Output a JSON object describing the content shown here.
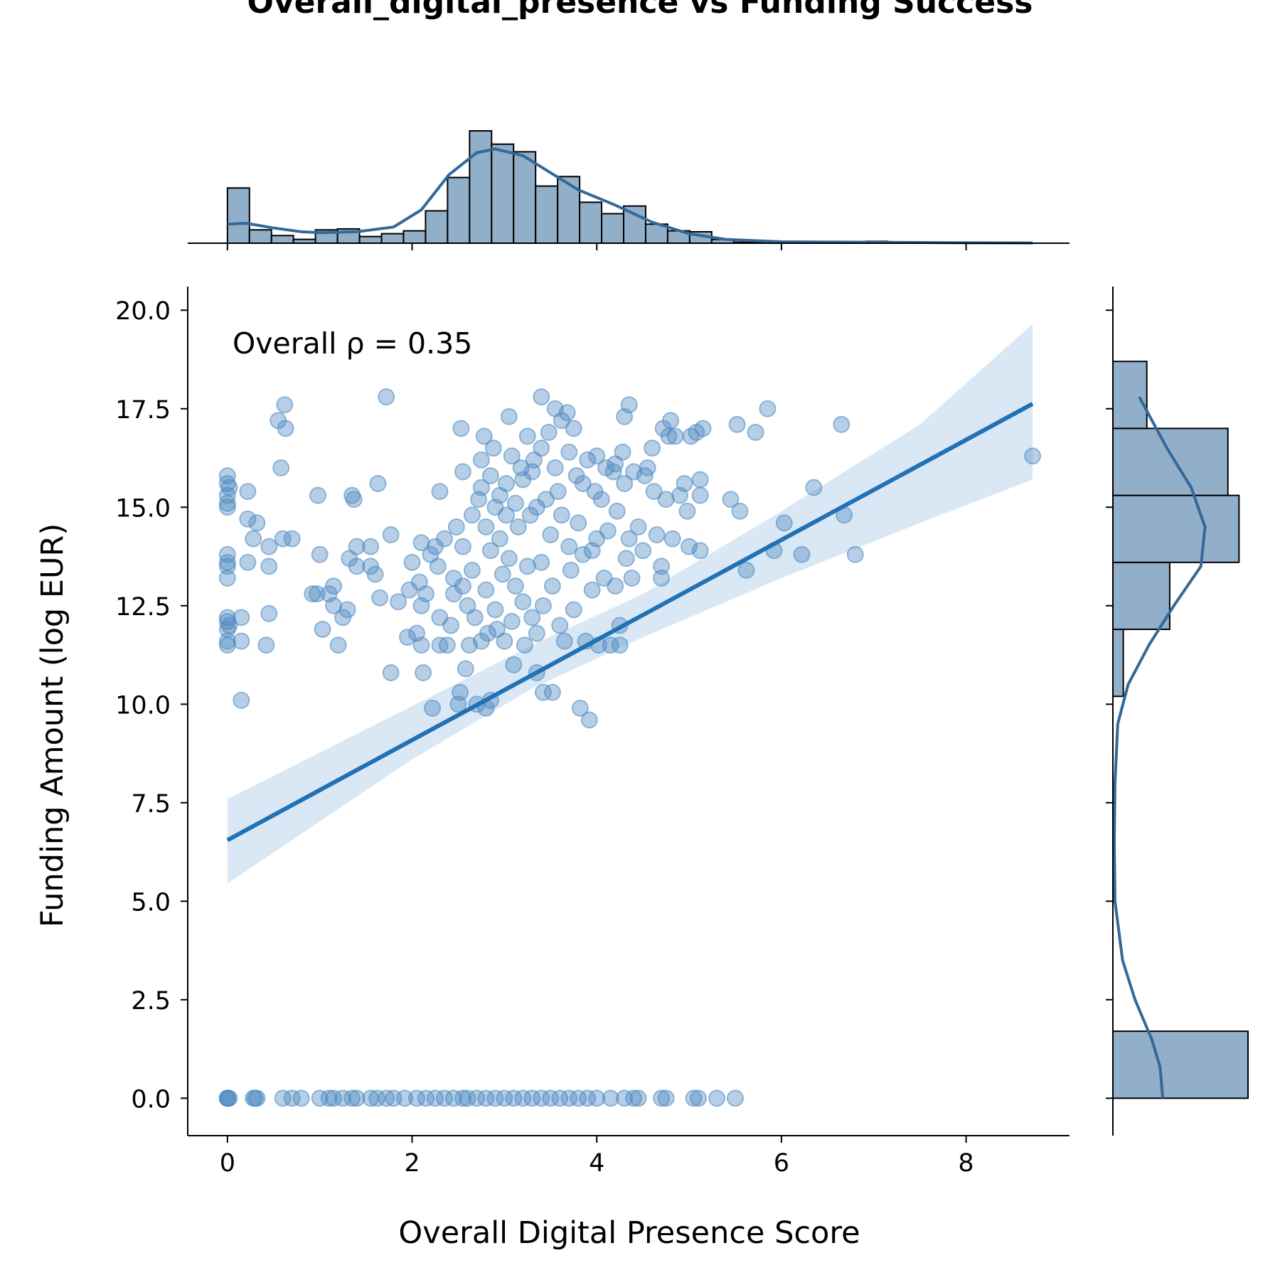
{
  "chart_data": {
    "type": "scatter",
    "title": "Overall_digital_presence vs Funding Success",
    "xlabel": "Overall Digital Presence Score",
    "ylabel": "Funding Amount (log EUR)",
    "annotation": "Overall ρ = 0.35",
    "xlim": [
      -0.43,
      9.12
    ],
    "ylim": [
      -0.95,
      20.6
    ],
    "x_ticks": [
      0,
      2,
      4,
      6,
      8
    ],
    "x_tick_labels": [
      "0",
      "2",
      "4",
      "6",
      "8"
    ],
    "y_ticks": [
      0,
      2.5,
      5,
      7.5,
      10,
      12.5,
      15,
      17.5,
      20
    ],
    "y_tick_labels": [
      "0.0",
      "2.5",
      "5.0",
      "7.5",
      "10.0",
      "12.5",
      "15.0",
      "17.5",
      "20.0"
    ],
    "grid": false,
    "colors": {
      "points": "#4a88c0",
      "regression_line": "#2171b5",
      "confidence_band": "#c6dbef",
      "histogram_fill": "#92afca",
      "kde_line": "#336897"
    },
    "regression": {
      "slope": 1.27,
      "intercept": 6.55,
      "x_range": [
        0,
        8.72
      ],
      "ci_lower": [
        [
          0,
          5.45
        ],
        [
          2,
          8.6
        ],
        [
          3.3,
          10.4
        ],
        [
          4.5,
          11.7
        ],
        [
          6,
          13.2
        ],
        [
          7.5,
          14.6
        ],
        [
          8.72,
          15.7
        ]
      ],
      "ci_upper": [
        [
          0,
          7.6
        ],
        [
          2,
          9.95
        ],
        [
          3.3,
          11.5
        ],
        [
          4.5,
          12.8
        ],
        [
          6,
          14.9
        ],
        [
          7.5,
          17.1
        ],
        [
          8.72,
          19.65
        ]
      ]
    },
    "points": [
      [
        0,
        15.8
      ],
      [
        0,
        15.6
      ],
      [
        0,
        15.3
      ],
      [
        0,
        15.0
      ],
      [
        0,
        15.1
      ],
      [
        0.02,
        15.5
      ],
      [
        0,
        13.8
      ],
      [
        0,
        13.5
      ],
      [
        0,
        13.6
      ],
      [
        0,
        13.2
      ],
      [
        0,
        12.2
      ],
      [
        0,
        12.1
      ],
      [
        0,
        11.9
      ],
      [
        0,
        11.6
      ],
      [
        0,
        11.5
      ],
      [
        0.02,
        12.0
      ],
      [
        0.15,
        12.2
      ],
      [
        0.15,
        11.6
      ],
      [
        0.15,
        10.1
      ],
      [
        0.22,
        15.4
      ],
      [
        0.22,
        14.7
      ],
      [
        0.22,
        13.6
      ],
      [
        0.28,
        14.2
      ],
      [
        0.32,
        14.6
      ],
      [
        0.42,
        11.5
      ],
      [
        0.45,
        12.3
      ],
      [
        0.45,
        13.5
      ],
      [
        0.45,
        14.0
      ],
      [
        0.55,
        17.2
      ],
      [
        0.58,
        16.0
      ],
      [
        0.6,
        14.2
      ],
      [
        0.62,
        17.6
      ],
      [
        0.63,
        17.0
      ],
      [
        0.7,
        14.2
      ],
      [
        0.92,
        12.8
      ],
      [
        0.97,
        12.8
      ],
      [
        0.98,
        15.3
      ],
      [
        1.0,
        13.8
      ],
      [
        1.03,
        11.9
      ],
      [
        1.1,
        12.8
      ],
      [
        1.15,
        13.0
      ],
      [
        1.15,
        12.5
      ],
      [
        1.2,
        11.5
      ],
      [
        1.25,
        12.2
      ],
      [
        1.3,
        12.4
      ],
      [
        1.32,
        13.7
      ],
      [
        1.35,
        15.3
      ],
      [
        1.37,
        15.2
      ],
      [
        1.4,
        14.0
      ],
      [
        1.4,
        13.5
      ],
      [
        1.55,
        14.0
      ],
      [
        1.55,
        13.5
      ],
      [
        1.6,
        13.3
      ],
      [
        1.63,
        15.6
      ],
      [
        1.65,
        12.7
      ],
      [
        1.72,
        17.8
      ],
      [
        1.77,
        14.3
      ],
      [
        1.77,
        10.8
      ],
      [
        1.85,
        12.6
      ],
      [
        1.95,
        11.7
      ],
      [
        1.97,
        12.9
      ],
      [
        2.0,
        13.6
      ],
      [
        2.05,
        11.8
      ],
      [
        2.08,
        13.1
      ],
      [
        2.1,
        14.1
      ],
      [
        2.1,
        12.5
      ],
      [
        2.1,
        11.5
      ],
      [
        2.12,
        10.8
      ],
      [
        2.15,
        12.8
      ],
      [
        2.2,
        13.8
      ],
      [
        2.22,
        9.9
      ],
      [
        2.25,
        14.0
      ],
      [
        2.28,
        13.5
      ],
      [
        2.3,
        15.4
      ],
      [
        2.3,
        12.2
      ],
      [
        2.3,
        11.5
      ],
      [
        2.35,
        14.2
      ],
      [
        2.38,
        11.5
      ],
      [
        2.42,
        12.0
      ],
      [
        2.45,
        13.2
      ],
      [
        2.45,
        12.8
      ],
      [
        2.48,
        14.5
      ],
      [
        2.5,
        10.0
      ],
      [
        2.52,
        10.3
      ],
      [
        2.53,
        17.0
      ],
      [
        2.55,
        15.9
      ],
      [
        2.55,
        14.0
      ],
      [
        2.55,
        13.0
      ],
      [
        2.58,
        10.9
      ],
      [
        2.6,
        12.5
      ],
      [
        2.62,
        11.5
      ],
      [
        2.65,
        14.8
      ],
      [
        2.65,
        13.4
      ],
      [
        2.68,
        12.2
      ],
      [
        2.7,
        10.0
      ],
      [
        2.72,
        15.2
      ],
      [
        2.75,
        16.2
      ],
      [
        2.75,
        15.5
      ],
      [
        2.75,
        11.6
      ],
      [
        2.78,
        16.8
      ],
      [
        2.8,
        14.5
      ],
      [
        2.8,
        12.9
      ],
      [
        2.8,
        9.9
      ],
      [
        2.82,
        11.8
      ],
      [
        2.85,
        15.8
      ],
      [
        2.85,
        13.9
      ],
      [
        2.85,
        10.1
      ],
      [
        2.88,
        16.5
      ],
      [
        2.9,
        15.0
      ],
      [
        2.9,
        12.4
      ],
      [
        2.92,
        11.9
      ],
      [
        2.95,
        15.3
      ],
      [
        2.95,
        14.2
      ],
      [
        2.98,
        13.3
      ],
      [
        3.0,
        11.6
      ],
      [
        3.02,
        15.6
      ],
      [
        3.02,
        14.8
      ],
      [
        3.05,
        17.3
      ],
      [
        3.05,
        13.7
      ],
      [
        3.08,
        16.3
      ],
      [
        3.08,
        12.1
      ],
      [
        3.1,
        11.0
      ],
      [
        3.12,
        15.1
      ],
      [
        3.12,
        13.0
      ],
      [
        3.15,
        14.5
      ],
      [
        3.18,
        16.0
      ],
      [
        3.2,
        15.7
      ],
      [
        3.2,
        12.6
      ],
      [
        3.22,
        11.5
      ],
      [
        3.25,
        16.8
      ],
      [
        3.25,
        13.5
      ],
      [
        3.28,
        14.8
      ],
      [
        3.3,
        15.9
      ],
      [
        3.3,
        12.2
      ],
      [
        3.32,
        16.2
      ],
      [
        3.35,
        15.0
      ],
      [
        3.35,
        11.8
      ],
      [
        3.35,
        10.8
      ],
      [
        3.4,
        17.8
      ],
      [
        3.4,
        16.5
      ],
      [
        3.4,
        13.6
      ],
      [
        3.42,
        12.5
      ],
      [
        3.42,
        10.3
      ],
      [
        3.45,
        15.2
      ],
      [
        3.48,
        16.9
      ],
      [
        3.5,
        14.3
      ],
      [
        3.52,
        13.0
      ],
      [
        3.52,
        10.3
      ],
      [
        3.55,
        17.5
      ],
      [
        3.55,
        16.0
      ],
      [
        3.58,
        15.4
      ],
      [
        3.6,
        12.0
      ],
      [
        3.62,
        17.2
      ],
      [
        3.62,
        14.8
      ],
      [
        3.65,
        11.6
      ],
      [
        3.68,
        17.4
      ],
      [
        3.7,
        16.4
      ],
      [
        3.7,
        14.0
      ],
      [
        3.72,
        13.4
      ],
      [
        3.75,
        17.0
      ],
      [
        3.75,
        12.4
      ],
      [
        3.78,
        15.8
      ],
      [
        3.8,
        14.6
      ],
      [
        3.82,
        9.9
      ],
      [
        3.85,
        15.6
      ],
      [
        3.85,
        13.8
      ],
      [
        3.88,
        11.6
      ],
      [
        3.9,
        16.2
      ],
      [
        3.92,
        9.6
      ],
      [
        3.95,
        13.9
      ],
      [
        3.95,
        12.9
      ],
      [
        3.98,
        15.4
      ],
      [
        4.0,
        16.3
      ],
      [
        4.0,
        14.2
      ],
      [
        4.02,
        11.5
      ],
      [
        4.05,
        15.2
      ],
      [
        4.08,
        13.2
      ],
      [
        4.1,
        16.0
      ],
      [
        4.12,
        14.4
      ],
      [
        4.15,
        11.5
      ],
      [
        4.18,
        15.9
      ],
      [
        4.2,
        16.1
      ],
      [
        4.2,
        13.0
      ],
      [
        4.22,
        14.9
      ],
      [
        4.25,
        12.0
      ],
      [
        4.25,
        11.5
      ],
      [
        4.28,
        16.4
      ],
      [
        4.3,
        17.3
      ],
      [
        4.3,
        15.6
      ],
      [
        4.32,
        13.7
      ],
      [
        4.35,
        17.6
      ],
      [
        4.35,
        14.2
      ],
      [
        4.38,
        13.2
      ],
      [
        4.4,
        15.9
      ],
      [
        4.45,
        14.5
      ],
      [
        4.5,
        13.9
      ],
      [
        4.52,
        15.8
      ],
      [
        4.55,
        16.0
      ],
      [
        4.6,
        16.5
      ],
      [
        4.62,
        15.4
      ],
      [
        4.65,
        14.3
      ],
      [
        4.7,
        13.5
      ],
      [
        4.7,
        13.2
      ],
      [
        4.72,
        17.0
      ],
      [
        4.75,
        15.2
      ],
      [
        4.78,
        16.8
      ],
      [
        4.8,
        17.2
      ],
      [
        4.82,
        14.2
      ],
      [
        4.85,
        16.8
      ],
      [
        4.9,
        15.3
      ],
      [
        4.95,
        15.6
      ],
      [
        4.98,
        14.9
      ],
      [
        5.0,
        14.0
      ],
      [
        5.02,
        16.8
      ],
      [
        5.08,
        16.9
      ],
      [
        5.12,
        15.7
      ],
      [
        5.12,
        15.3
      ],
      [
        5.12,
        13.9
      ],
      [
        5.15,
        17.0
      ],
      [
        5.45,
        15.2
      ],
      [
        5.52,
        17.1
      ],
      [
        5.55,
        14.9
      ],
      [
        5.62,
        13.4
      ],
      [
        5.72,
        16.9
      ],
      [
        5.85,
        17.5
      ],
      [
        5.92,
        13.9
      ],
      [
        6.03,
        14.6
      ],
      [
        6.22,
        13.8
      ],
      [
        6.35,
        15.5
      ],
      [
        6.65,
        17.1
      ],
      [
        6.68,
        14.8
      ],
      [
        6.8,
        13.8
      ],
      [
        8.72,
        16.3
      ],
      [
        0,
        0
      ],
      [
        0,
        0
      ],
      [
        0,
        0
      ],
      [
        0.02,
        0
      ],
      [
        0.28,
        0
      ],
      [
        0.3,
        0
      ],
      [
        0.32,
        0
      ],
      [
        0.6,
        0
      ],
      [
        0.7,
        0
      ],
      [
        0.8,
        0
      ],
      [
        1.0,
        0
      ],
      [
        1.1,
        0
      ],
      [
        1.15,
        0
      ],
      [
        1.25,
        0
      ],
      [
        1.35,
        0
      ],
      [
        1.4,
        0
      ],
      [
        1.55,
        0
      ],
      [
        1.62,
        0
      ],
      [
        1.72,
        0
      ],
      [
        1.8,
        0
      ],
      [
        1.92,
        0
      ],
      [
        2.05,
        0
      ],
      [
        2.15,
        0
      ],
      [
        2.25,
        0
      ],
      [
        2.35,
        0
      ],
      [
        2.45,
        0
      ],
      [
        2.55,
        0
      ],
      [
        2.6,
        0
      ],
      [
        2.7,
        0
      ],
      [
        2.8,
        0
      ],
      [
        2.9,
        0
      ],
      [
        3.0,
        0
      ],
      [
        3.1,
        0
      ],
      [
        3.2,
        0
      ],
      [
        3.3,
        0
      ],
      [
        3.4,
        0
      ],
      [
        3.5,
        0
      ],
      [
        3.6,
        0
      ],
      [
        3.7,
        0
      ],
      [
        3.8,
        0
      ],
      [
        3.9,
        0
      ],
      [
        4.0,
        0
      ],
      [
        4.15,
        0
      ],
      [
        4.3,
        0
      ],
      [
        4.4,
        0
      ],
      [
        4.45,
        0
      ],
      [
        4.7,
        0
      ],
      [
        4.75,
        0
      ],
      [
        5.05,
        0
      ],
      [
        5.1,
        0
      ],
      [
        5.3,
        0
      ],
      [
        5.5,
        0
      ]
    ],
    "x_histogram": {
      "bin_edges": [
        0,
        0.2384,
        0.4768,
        0.7152,
        0.9536,
        1.192,
        1.4304,
        1.6688,
        1.9072,
        2.1456,
        2.384,
        2.6224,
        2.8608,
        3.0992,
        3.3376,
        3.576,
        3.8144,
        4.0528,
        4.2912,
        4.5296,
        4.768,
        5.0064,
        5.2448,
        5.4832,
        5.7216,
        5.96,
        6.1984,
        6.4368,
        6.6752,
        6.9136,
        7.152,
        7.3904,
        7.6288,
        7.8672,
        8.1056,
        8.344,
        8.5824,
        8.8208
      ],
      "counts": [
        58,
        14,
        8,
        4,
        14,
        15,
        7,
        10,
        13,
        34,
        69,
        118,
        104,
        96,
        60,
        70,
        43,
        31,
        39,
        20,
        13,
        12,
        4,
        1,
        1,
        1,
        1,
        1,
        1,
        2,
        1,
        0,
        0,
        0,
        0,
        0,
        0
      ],
      "kde": [
        [
          0,
          20
        ],
        [
          0.2,
          21
        ],
        [
          0.5,
          16
        ],
        [
          0.8,
          12
        ],
        [
          1.0,
          11
        ],
        [
          1.4,
          12
        ],
        [
          1.8,
          17
        ],
        [
          2.1,
          35
        ],
        [
          2.4,
          72
        ],
        [
          2.7,
          95
        ],
        [
          2.9,
          99
        ],
        [
          3.2,
          92
        ],
        [
          3.5,
          74
        ],
        [
          3.8,
          56
        ],
        [
          4.2,
          40
        ],
        [
          4.6,
          22
        ],
        [
          5.0,
          10
        ],
        [
          5.4,
          4
        ],
        [
          6.0,
          1.5
        ],
        [
          7.0,
          1
        ],
        [
          8.0,
          0.5
        ],
        [
          8.72,
          0.3
        ]
      ]
    },
    "y_histogram": {
      "bin_edges": [
        0,
        1.7,
        3.4,
        5.1,
        6.8,
        8.5,
        10.2,
        11.9,
        13.6,
        15.3,
        17.0,
        18.7
      ],
      "counts": [
        195,
        0,
        0,
        0,
        0,
        0,
        15,
        82,
        182,
        166,
        49
      ],
      "kde": [
        [
          0,
          72
        ],
        [
          0.8,
          68
        ],
        [
          1.5,
          56
        ],
        [
          2.5,
          32
        ],
        [
          3.5,
          14
        ],
        [
          5,
          3
        ],
        [
          6.5,
          2
        ],
        [
          8,
          3
        ],
        [
          9.5,
          7
        ],
        [
          10.5,
          22
        ],
        [
          11.5,
          52
        ],
        [
          12.5,
          88
        ],
        [
          13.5,
          127
        ],
        [
          14.5,
          133
        ],
        [
          15.5,
          113
        ],
        [
          16.5,
          78
        ],
        [
          17.8,
          38
        ]
      ]
    }
  }
}
